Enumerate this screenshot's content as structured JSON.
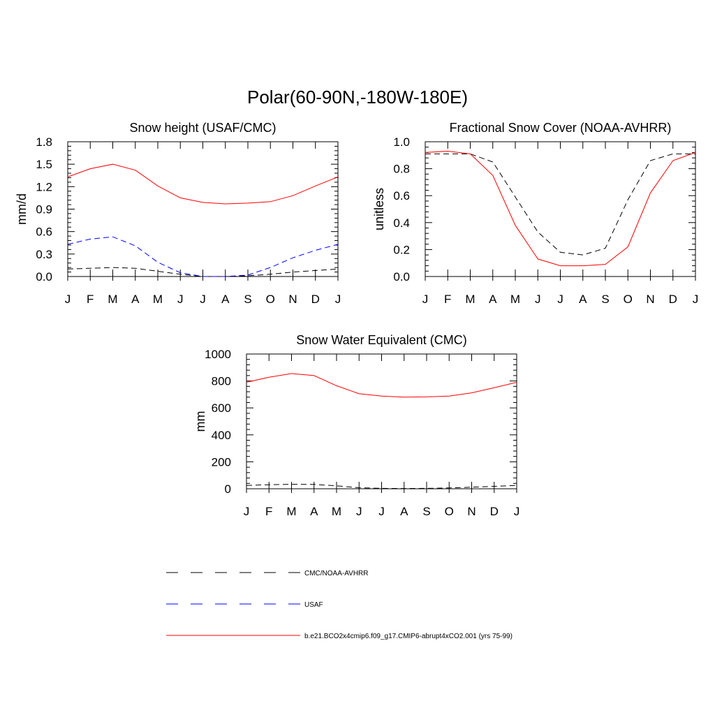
{
  "figure": {
    "title": "Polar(60-90N,-180W-180E)"
  },
  "chart_data": [
    {
      "type": "line",
      "title": "Snow height (USAF/CMC)",
      "xlabel": "",
      "ylabel": "mm/d",
      "categories": [
        "J",
        "F",
        "M",
        "A",
        "M",
        "J",
        "J",
        "A",
        "S",
        "O",
        "N",
        "D",
        "J"
      ],
      "ylim": [
        0,
        1.8
      ],
      "yticks": [
        "0.0",
        "0.3",
        "0.6",
        "0.9",
        "1.2",
        "1.5",
        "1.8"
      ],
      "series": [
        {
          "name": "CMC/NOAA-AVHRR",
          "color": "#000000",
          "dash": true,
          "values": [
            0.1,
            0.11,
            0.12,
            0.11,
            0.07,
            0.03,
            0.0,
            0.0,
            0.01,
            0.03,
            0.06,
            0.08,
            0.1
          ]
        },
        {
          "name": "USAF",
          "color": "#0000ff",
          "dash": true,
          "values": [
            0.43,
            0.5,
            0.53,
            0.41,
            0.19,
            0.05,
            0.0,
            0.0,
            0.02,
            0.12,
            0.25,
            0.35,
            0.43
          ]
        },
        {
          "name": "b.e21.BCO2x4cmip6.f09_g17.CMIP6-abrupt4xCO2.001 (yrs 75-99)",
          "color": "#ff0000",
          "dash": false,
          "values": [
            1.33,
            1.44,
            1.5,
            1.42,
            1.21,
            1.05,
            0.99,
            0.97,
            0.98,
            1.0,
            1.08,
            1.21,
            1.33
          ]
        }
      ]
    },
    {
      "type": "line",
      "title": "Fractional Snow Cover (NOAA-AVHRR)",
      "xlabel": "",
      "ylabel": "unitless",
      "categories": [
        "J",
        "F",
        "M",
        "A",
        "M",
        "J",
        "J",
        "A",
        "S",
        "O",
        "N",
        "D",
        "J"
      ],
      "ylim": [
        0,
        1.0
      ],
      "yticks": [
        "0.0",
        "0.2",
        "0.4",
        "0.6",
        "0.8",
        "1.0"
      ],
      "series": [
        {
          "name": "CMC/NOAA-AVHRR",
          "color": "#000000",
          "dash": true,
          "values": [
            0.91,
            0.91,
            0.91,
            0.85,
            0.59,
            0.33,
            0.18,
            0.16,
            0.21,
            0.57,
            0.86,
            0.91,
            0.91
          ]
        },
        {
          "name": "b.e21.BCO2x4cmip6.f09_g17.CMIP6-abrupt4xCO2.001 (yrs 75-99)",
          "color": "#ff0000",
          "dash": false,
          "values": [
            0.92,
            0.93,
            0.91,
            0.75,
            0.38,
            0.13,
            0.08,
            0.08,
            0.09,
            0.22,
            0.62,
            0.86,
            0.92
          ]
        }
      ]
    },
    {
      "type": "line",
      "title": "Snow Water Equivalent (CMC)",
      "xlabel": "",
      "ylabel": "mm",
      "categories": [
        "J",
        "F",
        "M",
        "A",
        "M",
        "J",
        "J",
        "A",
        "S",
        "O",
        "N",
        "D",
        "J"
      ],
      "ylim": [
        0,
        1000
      ],
      "yticks": [
        "0",
        "200",
        "400",
        "600",
        "800",
        "1000"
      ],
      "series": [
        {
          "name": "CMC/NOAA-AVHRR",
          "color": "#000000",
          "dash": true,
          "values": [
            25,
            30,
            33,
            32,
            22,
            8,
            3,
            2,
            3,
            6,
            12,
            18,
            25
          ]
        },
        {
          "name": "b.e21.BCO2x4cmip6.f09_g17.CMIP6-abrupt4xCO2.001 (yrs 75-99)",
          "color": "#ff0000",
          "dash": false,
          "values": [
            790,
            828,
            855,
            840,
            765,
            705,
            688,
            680,
            682,
            688,
            712,
            750,
            790
          ]
        }
      ]
    }
  ],
  "legend": {
    "items": [
      {
        "label": "CMC/NOAA-AVHRR",
        "color": "#000000",
        "dash": true
      },
      {
        "label": "USAF",
        "color": "#0000ff",
        "dash": true
      },
      {
        "label": "b.e21.BCO2x4cmip6.f09_g17.CMIP6-abrupt4xCO2.001 (yrs 75-99)",
        "color": "#ff0000",
        "dash": false
      }
    ]
  }
}
